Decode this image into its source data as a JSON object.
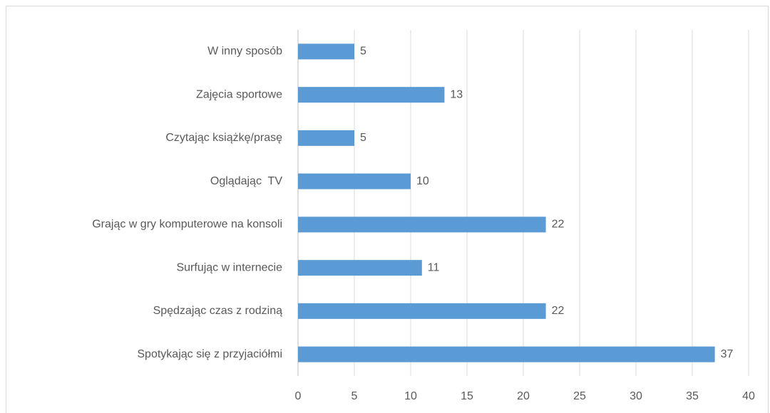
{
  "chart_data": {
    "type": "barh",
    "categories": [
      "W inny sposób",
      "Zajęcia sportowe",
      "Czytając książkę/prasę",
      "Oglądając  TV",
      "Grając w gry komputerowe na konsoli",
      "Surfując w internecie",
      "Spędzając czas z rodziną",
      "Spotykając się z przyjaciółmi"
    ],
    "values": [
      5,
      13,
      5,
      10,
      22,
      11,
      22,
      37
    ],
    "color": "#5b9bd5",
    "xlim": [
      0,
      40
    ],
    "xticks": [
      0,
      5,
      10,
      15,
      20,
      25,
      30,
      35,
      40
    ],
    "grid": true
  }
}
